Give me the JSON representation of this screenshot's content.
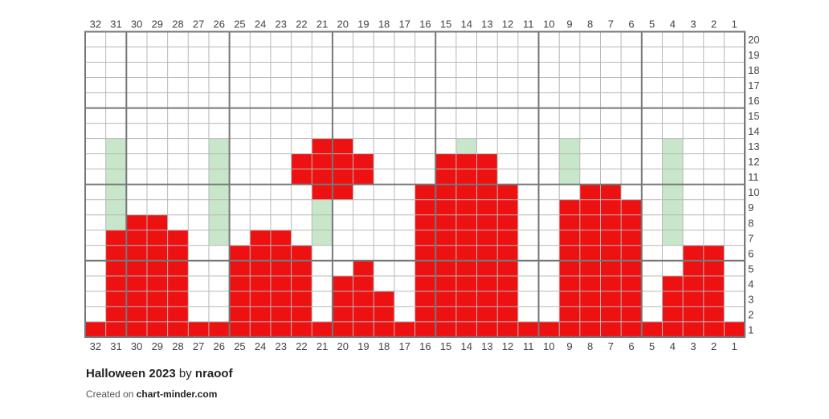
{
  "chart_data": {
    "type": "knitting-chart-grid",
    "columns": 32,
    "rows": 20,
    "column_labels_top": [
      "32",
      "31",
      "30",
      "29",
      "28",
      "27",
      "26",
      "25",
      "24",
      "23",
      "22",
      "21",
      "20",
      "19",
      "18",
      "17",
      "16",
      "15",
      "14",
      "13",
      "12",
      "11",
      "10",
      "9",
      "8",
      "7",
      "6",
      "5",
      "4",
      "3",
      "2",
      "1"
    ],
    "column_labels_bottom": [
      "32",
      "31",
      "30",
      "29",
      "28",
      "27",
      "26",
      "25",
      "24",
      "23",
      "22",
      "21",
      "20",
      "19",
      "18",
      "17",
      "16",
      "15",
      "14",
      "13",
      "12",
      "11",
      "10",
      "9",
      "8",
      "7",
      "6",
      "5",
      "4",
      "3",
      "2",
      "1"
    ],
    "row_labels": [
      "20",
      "19",
      "18",
      "17",
      "16",
      "15",
      "14",
      "13",
      "12",
      "11",
      "10",
      "9",
      "8",
      "7",
      "6",
      "5",
      "4",
      "3",
      "2",
      "1"
    ],
    "colors": {
      "red": "#ee1111",
      "green": "#c8e6c9",
      "white": "#ffffff",
      "grid": "#b8b8b8",
      "major_grid": "#777777"
    },
    "major_grid_every": 5,
    "red_column_heights": {
      "1": 1,
      "2": 6,
      "3": 6,
      "4": 4,
      "5": 1,
      "6": 9,
      "7": 10,
      "8": 10,
      "9": 9,
      "10": 1,
      "11": 1,
      "12": 10,
      "13": 12,
      "14": 12,
      "15": 12,
      "16": 10,
      "17": 1,
      "18": 3,
      "19": 5,
      "20": 4,
      "21": 1,
      "22": 6,
      "23": 7,
      "24": 7,
      "25": 6,
      "26": 1,
      "27": 1,
      "28": 7,
      "29": 8,
      "30": 8,
      "31": 7,
      "32": 1
    },
    "red_extra_cells": [
      {
        "col": 20,
        "row": 10
      },
      {
        "col": 20,
        "row": 11
      },
      {
        "col": 20,
        "row": 12
      },
      {
        "col": 20,
        "row": 13
      },
      {
        "col": 21,
        "row": 10
      },
      {
        "col": 21,
        "row": 11
      },
      {
        "col": 21,
        "row": 12
      },
      {
        "col": 21,
        "row": 13
      },
      {
        "col": 19,
        "row": 11
      },
      {
        "col": 19,
        "row": 12
      },
      {
        "col": 22,
        "row": 11
      },
      {
        "col": 22,
        "row": 12
      }
    ],
    "green_cells": [
      {
        "col": 31,
        "row": 8
      },
      {
        "col": 31,
        "row": 9
      },
      {
        "col": 31,
        "row": 10
      },
      {
        "col": 31,
        "row": 11
      },
      {
        "col": 31,
        "row": 12
      },
      {
        "col": 31,
        "row": 13
      },
      {
        "col": 26,
        "row": 7
      },
      {
        "col": 26,
        "row": 8
      },
      {
        "col": 26,
        "row": 9
      },
      {
        "col": 26,
        "row": 10
      },
      {
        "col": 26,
        "row": 11
      },
      {
        "col": 26,
        "row": 12
      },
      {
        "col": 26,
        "row": 13
      },
      {
        "col": 21,
        "row": 7
      },
      {
        "col": 21,
        "row": 8
      },
      {
        "col": 21,
        "row": 9
      },
      {
        "col": 14,
        "row": 13
      },
      {
        "col": 9,
        "row": 11
      },
      {
        "col": 9,
        "row": 12
      },
      {
        "col": 9,
        "row": 13
      },
      {
        "col": 4,
        "row": 7
      },
      {
        "col": 4,
        "row": 8
      },
      {
        "col": 4,
        "row": 9
      },
      {
        "col": 4,
        "row": 10
      },
      {
        "col": 4,
        "row": 11
      },
      {
        "col": 4,
        "row": 12
      },
      {
        "col": 4,
        "row": 13
      }
    ]
  },
  "footer": {
    "title": "Halloween 2023",
    "by": "by",
    "author": "nraoof",
    "created_prefix": "Created on",
    "site": "chart-minder.com"
  }
}
